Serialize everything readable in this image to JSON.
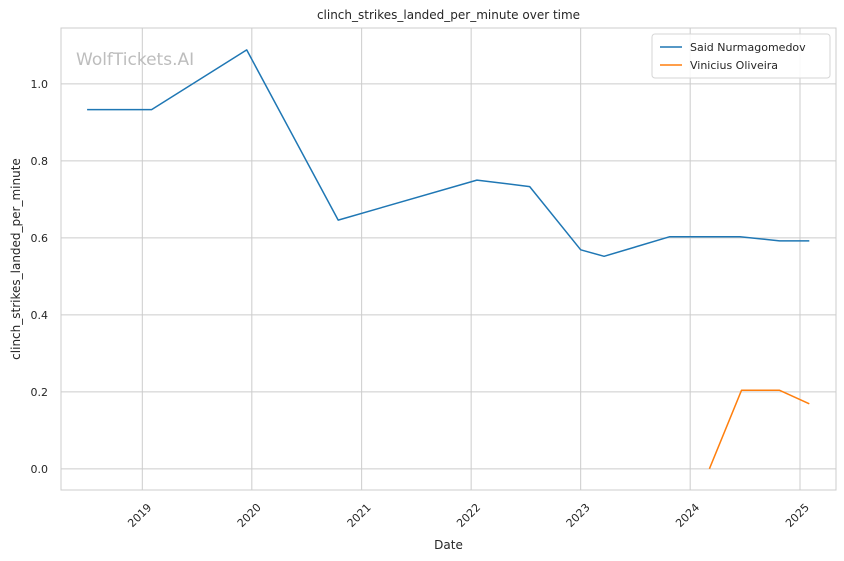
{
  "watermark": "WolfTickets.AI",
  "chart_data": {
    "type": "line",
    "title": "clinch_strikes_landed_per_minute over time",
    "xlabel": "Date",
    "ylabel": "clinch_strikes_landed_per_minute",
    "x_type": "date",
    "xlim": [
      "2018-04-05",
      "2025-05-01"
    ],
    "ylim": [
      -0.055,
      1.145
    ],
    "x_ticks": [
      "2019",
      "2020",
      "2021",
      "2022",
      "2023",
      "2024",
      "2025"
    ],
    "y_ticks": [
      0.0,
      0.2,
      0.4,
      0.6,
      0.8,
      1.0
    ],
    "y_tick_labels": [
      "0.0",
      "0.2",
      "0.4",
      "0.6",
      "0.8",
      "1.0"
    ],
    "grid": true,
    "legend_position": "top-right",
    "series": [
      {
        "name": "Said Nurmagomedov",
        "color": "#1f77b4",
        "points": [
          [
            "2018-07-01",
            0.933
          ],
          [
            "2019-02-01",
            0.933
          ],
          [
            "2019-12-15",
            1.088
          ],
          [
            "2020-10-15",
            0.646
          ],
          [
            "2022-01-20",
            0.75
          ],
          [
            "2022-07-15",
            0.733
          ],
          [
            "2023-01-01",
            0.569
          ],
          [
            "2023-03-20",
            0.552
          ],
          [
            "2023-10-25",
            0.603
          ],
          [
            "2024-06-15",
            0.603
          ],
          [
            "2024-10-25",
            0.592
          ],
          [
            "2025-02-01",
            0.592
          ]
        ]
      },
      {
        "name": "Vinicius Oliveira",
        "color": "#ff7f0e",
        "points": [
          [
            "2024-03-05",
            0.0
          ],
          [
            "2024-06-20",
            0.204
          ],
          [
            "2024-10-25",
            0.204
          ],
          [
            "2025-02-01",
            0.169
          ]
        ]
      }
    ]
  }
}
